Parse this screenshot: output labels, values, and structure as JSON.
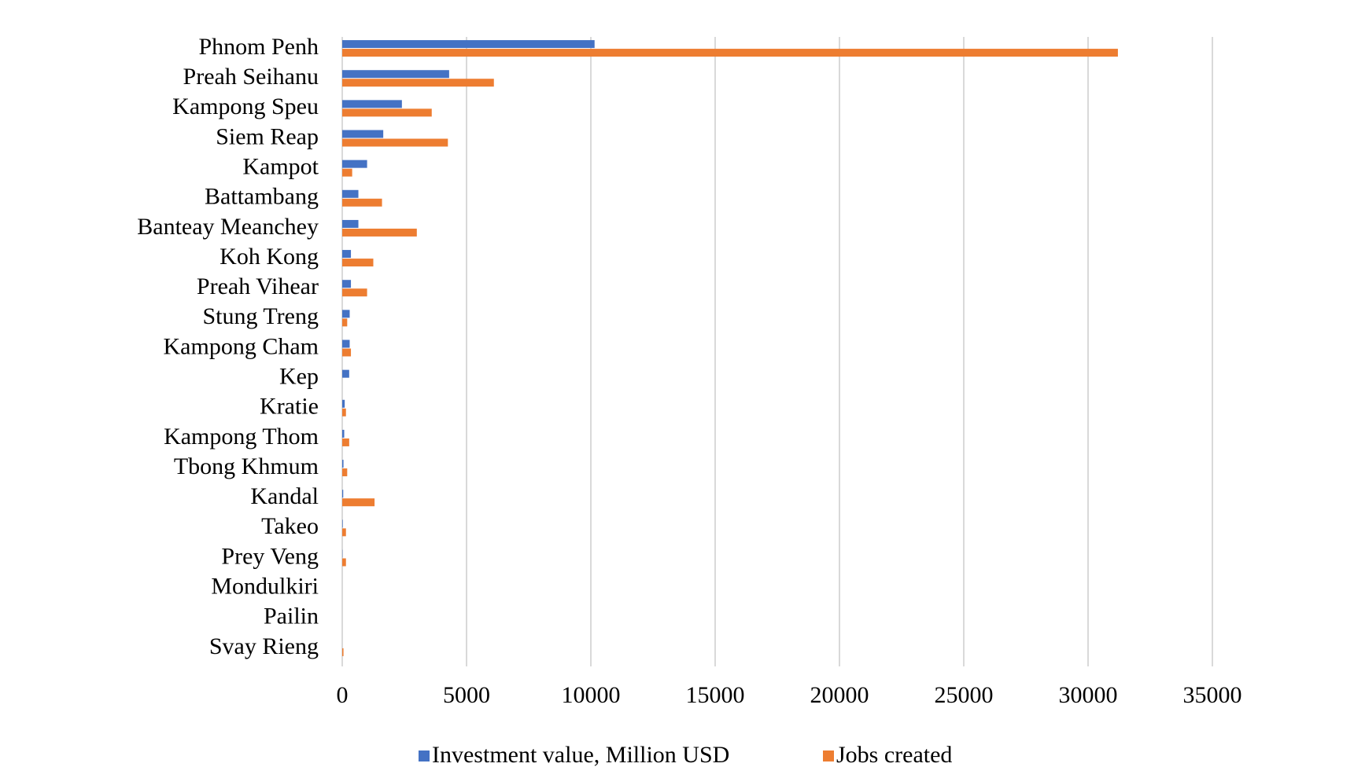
{
  "chart_data": {
    "type": "bar",
    "orientation": "horizontal",
    "categories": [
      "Phnom Penh",
      "Preah Seihanu",
      "Kampong Speu",
      "Siem Reap",
      "Kampot",
      "Battambang",
      "Banteay Meanchey",
      "Koh Kong",
      "Preah Vihear",
      "Stung Treng",
      "Kampong Cham",
      "Kep",
      "Kratie",
      "Kampong Thom",
      "Tbong Khmum",
      "Kandal",
      "Takeo",
      "Prey Veng",
      "Mondulkiri",
      "Pailin",
      "Svay Rieng"
    ],
    "series": [
      {
        "name": "Investment value, Million USD",
        "color": "#4472c4",
        "values": [
          10150,
          4300,
          2400,
          1650,
          1000,
          650,
          650,
          350,
          350,
          300,
          300,
          280,
          100,
          80,
          50,
          40,
          20,
          10,
          0,
          0,
          0
        ]
      },
      {
        "name": "Jobs created",
        "color": "#ed7d31",
        "values": [
          31200,
          6100,
          3600,
          4250,
          400,
          1600,
          3000,
          1250,
          1000,
          200,
          350,
          0,
          150,
          280,
          200,
          1300,
          150,
          150,
          0,
          0,
          50
        ]
      }
    ],
    "xlim": [
      0,
      35000
    ],
    "xticks": [
      0,
      5000,
      10000,
      15000,
      20000,
      25000,
      30000,
      35000
    ],
    "grid": true,
    "legend": "bottom"
  }
}
